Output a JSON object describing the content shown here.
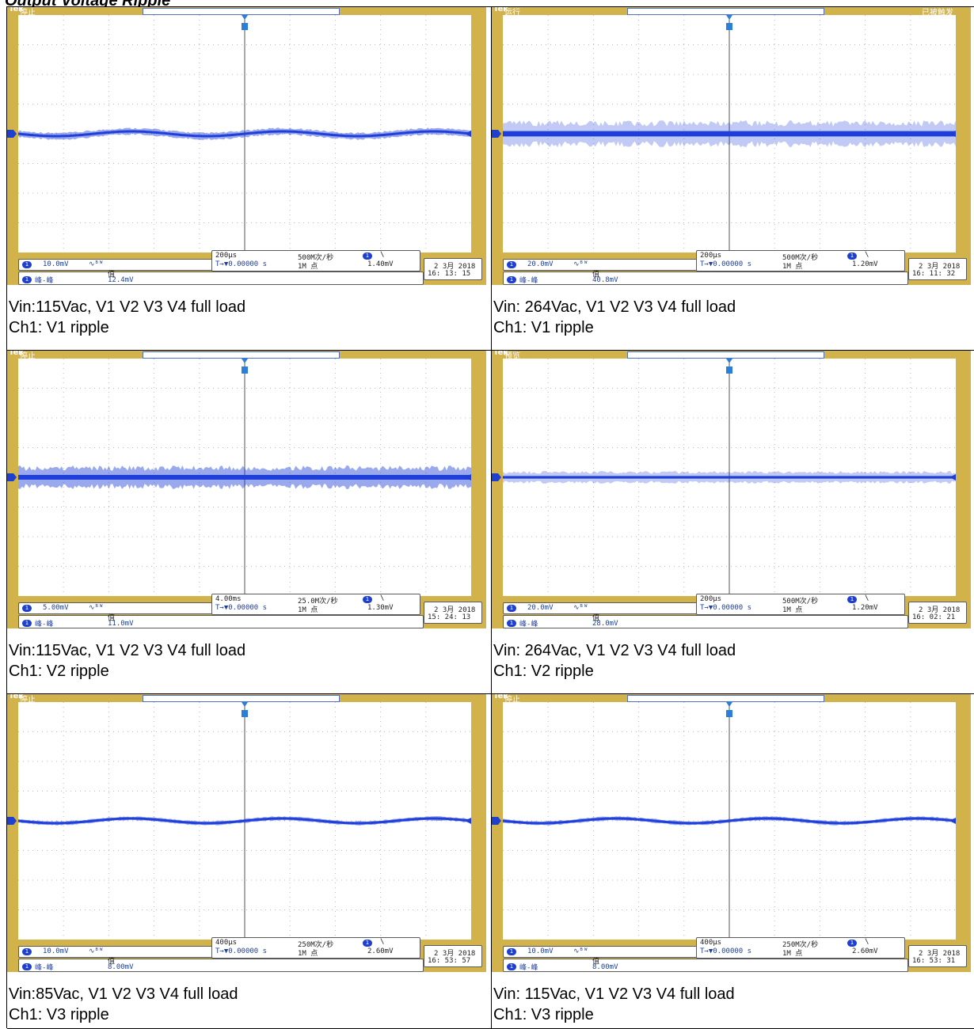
{
  "document_title": "Output Voltage Ripple",
  "colors": {
    "trace": "#1f3fd8",
    "bezel": "#d2b24a",
    "grid": "#b8b8b8"
  },
  "panels": [
    {
      "brand": "Tek",
      "status": "停止",
      "status_right": "",
      "ch_scale": "10.0mV",
      "timebase": "200µs",
      "sample_rate": "500M次/秒",
      "points": "1M 点",
      "trig_pos": "0.00000 s",
      "trig_level": "1.40mV",
      "date": "2 3月  2018",
      "time": "16: 13: 15",
      "meas_name": "峰-峰",
      "meas_header": "值",
      "meas_value": "12.4mV",
      "caption1": " Vin:115Vac, V1 V2 V3 V4 full load",
      "caption2": "Ch1: V1 ripple",
      "band": 10,
      "wave": "drift"
    },
    {
      "brand": "Tek",
      "status": "运行",
      "status_right": "已被触发",
      "ch_scale": "20.0mV",
      "timebase": "200µs",
      "sample_rate": "500M次/秒",
      "points": "1M 点",
      "trig_pos": "0.00000 s",
      "trig_level": "1.20mV",
      "date": "2 3月  2018",
      "time": "16: 11: 32",
      "meas_name": "峰-峰",
      "meas_header": "值",
      "meas_value": "40.8mV",
      "caption1": " Vin: 264Vac, V1 V2 V3 V4 full load",
      "caption2": "Ch1: V1 ripple",
      "band": 34,
      "wave": "spiky"
    },
    {
      "brand": "Tek",
      "status": "停止",
      "status_right": "",
      "ch_scale": "5.00mV",
      "timebase": "4.00ms",
      "sample_rate": "25.0M次/秒",
      "points": "1M 点",
      "trig_pos": "0.00000 s",
      "trig_level": "1.30mV",
      "date": "2 3月  2018",
      "time": "15: 24: 13",
      "meas_name": "峰-峰",
      "meas_header": "值",
      "meas_value": "11.0mV",
      "caption1": " Vin:115Vac, V1 V2 V3 V4 full load",
      "caption2": "Ch1: V2 ripple",
      "band": 30,
      "wave": "noise"
    },
    {
      "brand": "Tek",
      "status": "预览",
      "status_right": "",
      "ch_scale": "20.0mV",
      "timebase": "200µs",
      "sample_rate": "500M次/秒",
      "points": "1M 点",
      "trig_pos": "0.00000 s",
      "trig_level": "1.20mV",
      "date": "2 3月  2018",
      "time": "16: 02: 21",
      "meas_name": "峰-峰",
      "meas_header": "值",
      "meas_value": "28.0mV",
      "caption1": " Vin: 264Vac, V1 V2 V3 V4 full load",
      "caption2": "Ch1: V2 ripple",
      "band": 16,
      "wave": "spiky"
    },
    {
      "brand": "Tek",
      "status": "停止",
      "status_right": "",
      "ch_scale": "10.0mV",
      "timebase": "400µs",
      "sample_rate": "250M次/秒",
      "points": "1M 点",
      "trig_pos": "0.00000 s",
      "trig_level": "2.60mV",
      "date": "2 3月  2018",
      "time": "16: 53: 57",
      "meas_name": "峰-峰",
      "meas_header": "值",
      "meas_value": "8.00mV",
      "caption1": " Vin:85Vac, V1 V2 V3 V4 full load",
      "caption2": "Ch1: V3 ripple",
      "band": 6,
      "wave": "wavy"
    },
    {
      "brand": "Tek",
      "status": "停止",
      "status_right": "",
      "ch_scale": "10.0mV",
      "timebase": "400µs",
      "sample_rate": "250M次/秒",
      "points": "1M 点",
      "trig_pos": "0.00000 s",
      "trig_level": "2.60mV",
      "date": "2 3月  2018",
      "time": "16: 53: 31",
      "meas_name": "峰-峰",
      "meas_header": "值",
      "meas_value": "8.00mV",
      "caption1": " Vin: 115Vac, V1 V2 V3 V4 full load",
      "caption2": "Ch1: V3 ripple",
      "band": 6,
      "wave": "wavy"
    }
  ]
}
